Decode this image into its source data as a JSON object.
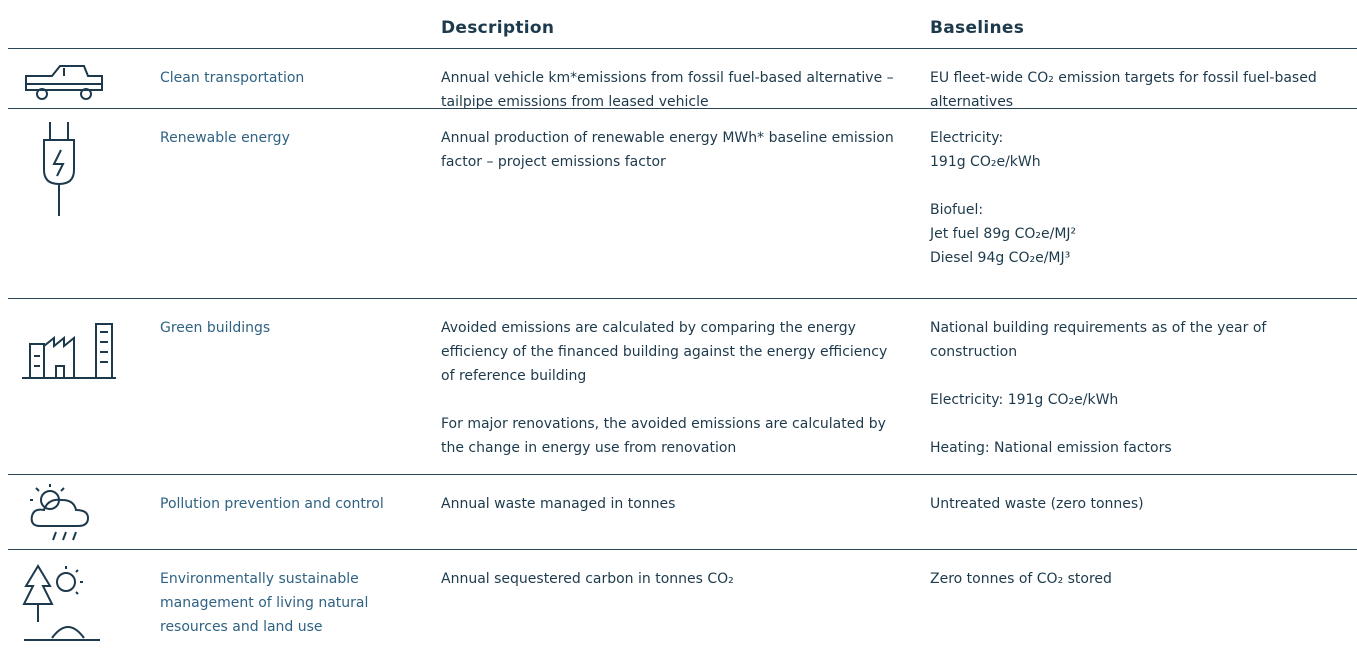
{
  "header": {
    "columns": [
      "Description",
      "Baselines"
    ]
  },
  "table": {
    "rows": [
      {
        "category": "Clean transportation",
        "description": [
          "Annual vehicle km*emissions from fossil fuel-based alternative – tailpipe emissions from leased vehicle"
        ],
        "baselines": [
          [
            "EU fleet-wide CO₂ emission targets for fossil fuel-based alternatives"
          ]
        ]
      },
      {
        "category": "Renewable energy",
        "description": [
          "Annual production of renewable energy MWh* baseline emission factor – project emissions factor"
        ],
        "baselines": [
          [
            "Electricity:",
            "191g CO₂e/kWh"
          ],
          [
            "Biofuel:",
            "Jet fuel 89g CO₂e/MJ²",
            "Diesel 94g CO₂e/MJ³"
          ]
        ]
      },
      {
        "category": "Green buildings",
        "description": [
          "Avoided emissions are calculated by comparing the energy efficiency of the financed building against the energy efficiency of reference building",
          "For major renovations, the avoided emissions are calculated by the change in energy use from renovation"
        ],
        "baselines": [
          [
            "National building requirements as of the year of construction"
          ],
          [
            "Electricity: 191g CO₂e/kWh"
          ],
          [
            "Heating: National emission factors"
          ]
        ]
      },
      {
        "category": "Pollution prevention and control",
        "description": [
          "Annual waste managed in tonnes"
        ],
        "baselines": [
          [
            "Untreated waste (zero tonnes)"
          ]
        ]
      },
      {
        "category": "Environmentally sustainable management of living natural resources and land use",
        "description": [
          "Annual sequestered carbon in tonnes CO₂"
        ],
        "baselines": [
          [
            "Zero tonnes of CO₂ stored"
          ]
        ]
      }
    ]
  }
}
